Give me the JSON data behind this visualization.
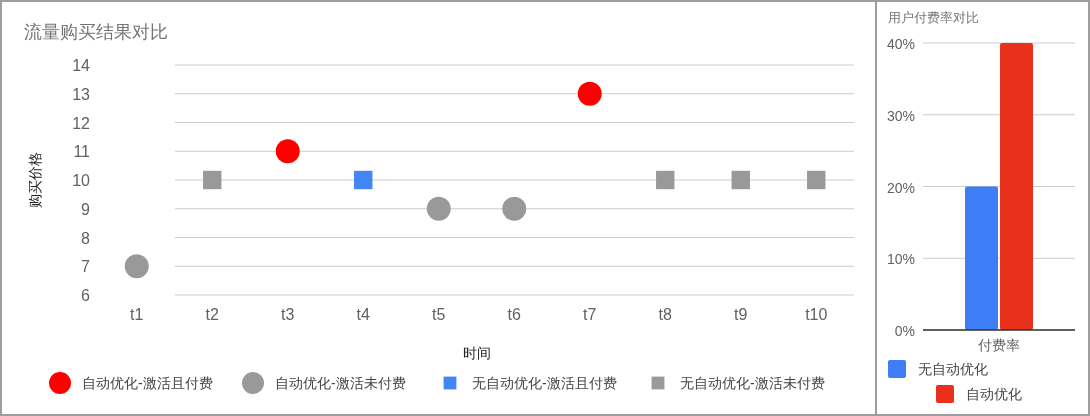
{
  "chart_data": [
    {
      "type": "scatter",
      "title": "流量购买结果对比",
      "xlabel": "时间",
      "ylabel": "购买价格",
      "categories": [
        "t1",
        "t2",
        "t3",
        "t4",
        "t5",
        "t6",
        "t7",
        "t8",
        "t9",
        "t10"
      ],
      "series": [
        {
          "name": "自动优化-激活且付费",
          "color": "#ff0000",
          "marker": "circle",
          "values": [
            null,
            null,
            11,
            null,
            null,
            null,
            13,
            null,
            null,
            null
          ]
        },
        {
          "name": "自动优化-激活未付费",
          "color": "#999999",
          "marker": "circle",
          "values": [
            7,
            null,
            null,
            null,
            9,
            9,
            null,
            null,
            null,
            null
          ]
        },
        {
          "name": "无自动优化-激活且付费",
          "color": "#4285f4",
          "marker": "square",
          "values": [
            null,
            null,
            null,
            10,
            null,
            null,
            null,
            null,
            null,
            null
          ]
        },
        {
          "name": "无自动优化-激活未付费",
          "color": "#999999",
          "marker": "square",
          "values": [
            null,
            10,
            null,
            null,
            null,
            null,
            null,
            10,
            10,
            10
          ]
        }
      ],
      "ylim": [
        6,
        14
      ],
      "yticks": [
        6,
        7,
        8,
        9,
        10,
        11,
        12,
        13,
        14
      ],
      "grid": "y",
      "legend": "bottom"
    },
    {
      "type": "bar",
      "title": "用户付费率对比",
      "categories": [
        "付费率"
      ],
      "series": [
        {
          "name": "无自动优化",
          "color": "#3d7ef7",
          "values": [
            20
          ]
        },
        {
          "name": "自动优化",
          "color": "#e8301c",
          "values": [
            40
          ]
        }
      ],
      "ylim": [
        0,
        40
      ],
      "yticks": [
        {
          "value": 0,
          "label": "0%"
        },
        {
          "value": 10,
          "label": "10%"
        },
        {
          "value": 20,
          "label": "20%"
        },
        {
          "value": 30,
          "label": "30%"
        },
        {
          "value": 40,
          "label": "40%"
        }
      ],
      "grid": "y",
      "legend": "bottom"
    }
  ]
}
